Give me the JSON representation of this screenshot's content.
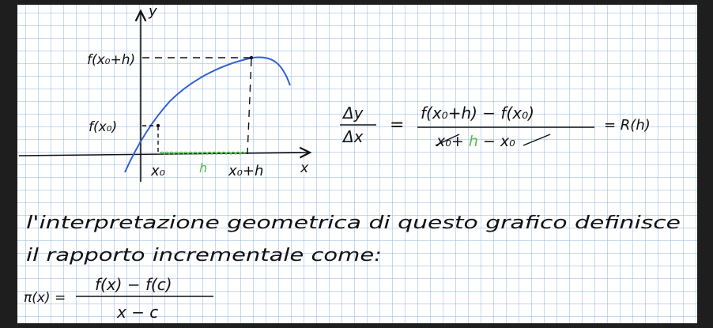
{
  "colors": {
    "grid": "#8fb3e3",
    "ink": "#111111",
    "curve": "#2f5fd0",
    "highlight": "#58b94a",
    "frame": "#1e1e1e"
  },
  "graph": {
    "y_axis_label": "y",
    "x_axis_label": "x",
    "f_x0_plus_h_label": "f(x₀+h)",
    "f_x0_label": "f(x₀)",
    "x0_label": "x₀",
    "h_label": "h",
    "x0_plus_h_label": "x₀+h"
  },
  "equation": {
    "numerator_left": "Δy",
    "denominator_left": "Δx",
    "equals": "=",
    "numerator_right": "f(x₀+h) − f(x₀)",
    "denominator_right_a": "x₀+ ",
    "denominator_right_h": "h",
    "denominator_right_b": " − x₀",
    "result": "= R(h)"
  },
  "text": {
    "line1": "l'interpretazione geometrica di questo grafico definisce",
    "line2": "il rapporto incrementale come:"
  },
  "formula": {
    "lhs": "π(x) =",
    "numerator": "f(x) − f(c)",
    "denominator": "x − c"
  }
}
